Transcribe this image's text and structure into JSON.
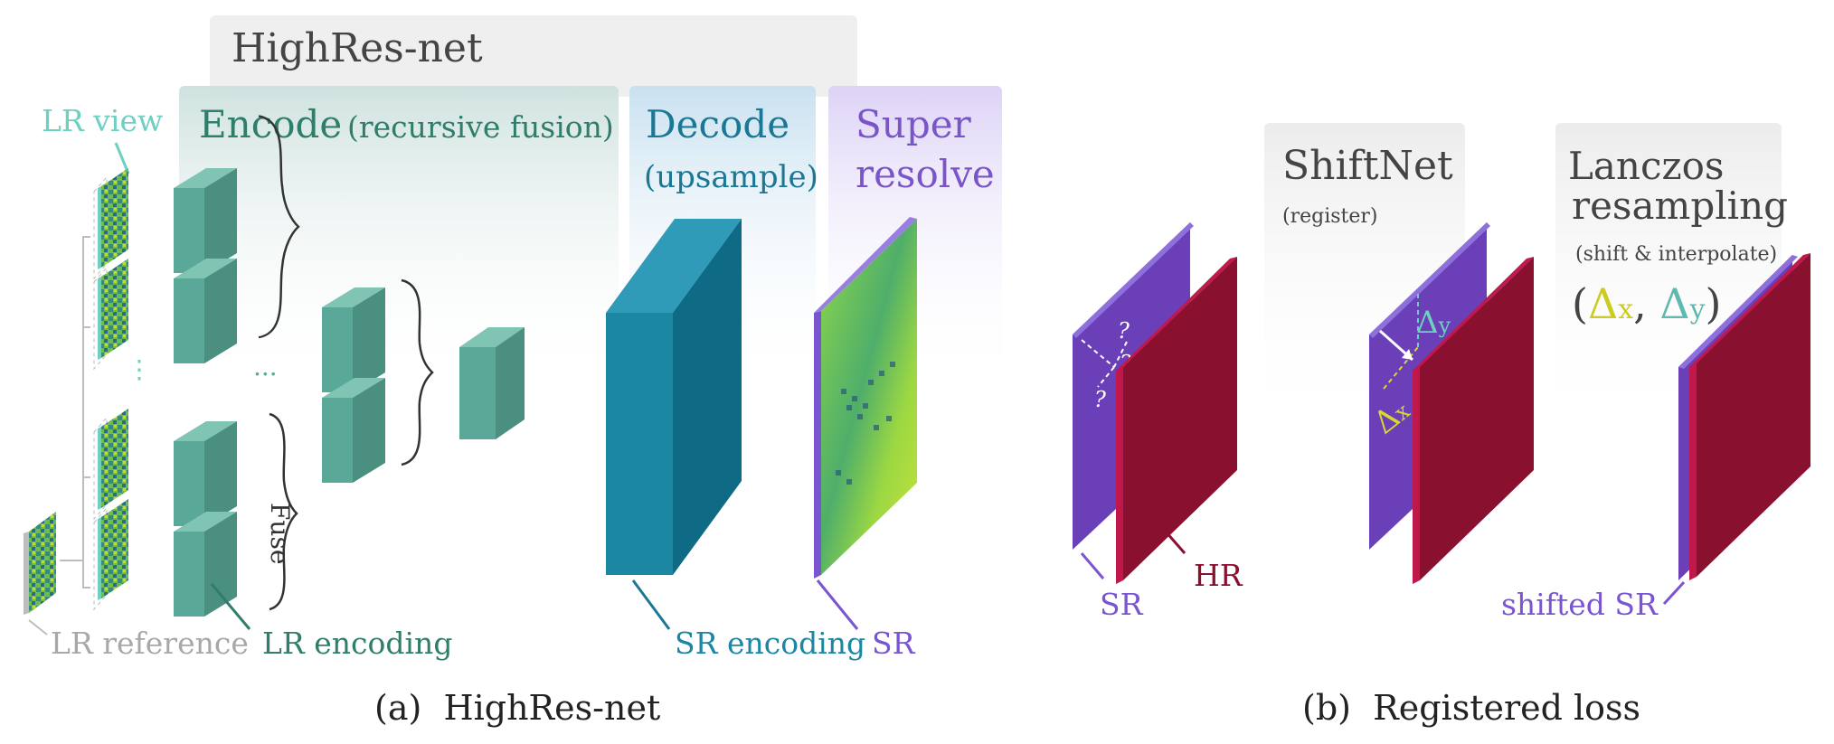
{
  "panel_a": {
    "title": "HighRes-net",
    "encode": {
      "title": "Encode",
      "subtitle": "(recursive fusion)"
    },
    "decode": {
      "title": "Decode",
      "subtitle": "(upsample)"
    },
    "super": {
      "line1": "Super",
      "line2": "resolve"
    },
    "lr_view": "LR view",
    "lr_reference": "LR reference",
    "lr_encoding": "LR encoding",
    "sr_encoding": "SR encoding",
    "sr": "SR",
    "fuse": "Fuse",
    "ellipsis": "...",
    "caption": "(a)  HighRes-net"
  },
  "panel_b": {
    "shiftnet": {
      "title": "ShiftNet",
      "subtitle": "(register)"
    },
    "lanczos": {
      "line1": "Lanczos",
      "line2": "resampling",
      "subtitle": "(shift & interpolate)"
    },
    "formula": {
      "open": "(",
      "dx_sym": "Δ",
      "dx_sub": "x",
      "comma": ", ",
      "dy_sym": "Δ",
      "dy_sub": "y",
      "close": ")"
    },
    "q_mark": "?",
    "dy_label": {
      "sym": "Δ",
      "sub": "y"
    },
    "dx_label": {
      "sym": "Δ",
      "sub": "x"
    },
    "sr": "SR",
    "hr": "HR",
    "shifted_sr": "shifted SR",
    "caption": "(b)  Registered loss"
  },
  "colors": {
    "encode": "#5aa897",
    "decode": "#1b87a3",
    "sr_purple": "#7a55d1",
    "hr_red": "#8a1030",
    "lr_view_teal": "#6fcfc0",
    "dx_yellow": "#d8d830"
  }
}
